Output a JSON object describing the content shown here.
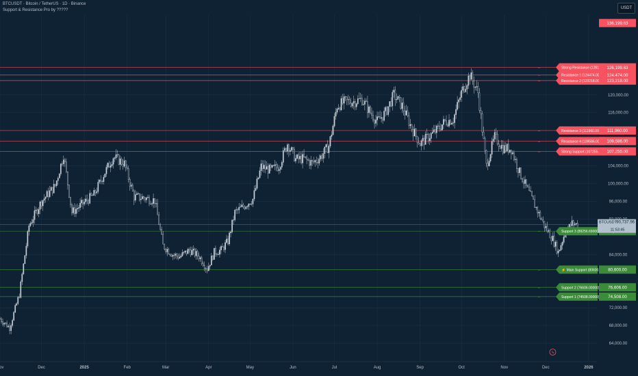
{
  "header": {
    "symbol_line": "BTCUSDT · Bitcoin / TetherUS · 1D · Binance",
    "indicator_line": "Support & Resistance Pro by ?????"
  },
  "toolbar": {
    "currency_label": "USDT",
    "zoom_label": ""
  },
  "price_badge": {
    "symbol": "BTCUSDT",
    "price": "90,737.96",
    "countdown": "11:53:45"
  },
  "colors": {
    "background": "#0f2233",
    "candle": "#c9d1da",
    "resistance": "#f7525f",
    "support": "#3c8b3a",
    "current": "#b2c1cd"
  },
  "chart_data": {
    "type": "candlestick",
    "ylim": [
      60000,
      138000
    ],
    "y_ticks": [
      {
        "v": 120000,
        "label": "120,000.00"
      },
      {
        "v": 116000,
        "label": "116,000.00"
      },
      {
        "v": 104000,
        "label": "104,000.00"
      },
      {
        "v": 100000,
        "label": "100,000.00"
      },
      {
        "v": 96000,
        "label": "96,000.00"
      },
      {
        "v": 92000,
        "label": "92,000.00"
      },
      {
        "v": 84000,
        "label": "84,000.00"
      },
      {
        "v": 72000,
        "label": "72,000.00"
      },
      {
        "v": 68000,
        "label": "68,000.00"
      },
      {
        "v": 64000,
        "label": "64,000.00"
      }
    ],
    "x_ticks": [
      {
        "day": 0,
        "label": "Nov",
        "bold": false
      },
      {
        "day": 30,
        "label": "Dec",
        "bold": false
      },
      {
        "day": 61,
        "label": "2025",
        "bold": true
      },
      {
        "day": 92,
        "label": "Feb",
        "bold": false
      },
      {
        "day": 120,
        "label": "Mar",
        "bold": false
      },
      {
        "day": 151,
        "label": "Apr",
        "bold": false
      },
      {
        "day": 181,
        "label": "May",
        "bold": false
      },
      {
        "day": 212,
        "label": "Jun",
        "bold": false
      },
      {
        "day": 242,
        "label": "Jul",
        "bold": false
      },
      {
        "day": 273,
        "label": "Aug",
        "bold": false
      },
      {
        "day": 304,
        "label": "Sep",
        "bold": false
      },
      {
        "day": 334,
        "label": "Oct",
        "bold": false
      },
      {
        "day": 365,
        "label": "Nov",
        "bold": false
      },
      {
        "day": 395,
        "label": "Dec",
        "bold": false
      },
      {
        "day": 426,
        "label": "2026",
        "bold": true
      }
    ],
    "price_path": [
      [
        0,
        69500
      ],
      [
        7,
        67500
      ],
      [
        14,
        75000
      ],
      [
        21,
        90500
      ],
      [
        30,
        96000
      ],
      [
        40,
        99500
      ],
      [
        46,
        106500
      ],
      [
        52,
        93500
      ],
      [
        60,
        95500
      ],
      [
        68,
        97500
      ],
      [
        75,
        102000
      ],
      [
        82,
        106000
      ],
      [
        90,
        104500
      ],
      [
        97,
        97000
      ],
      [
        104,
        96800
      ],
      [
        112,
        96200
      ],
      [
        118,
        86000
      ],
      [
        125,
        84000
      ],
      [
        130,
        83500
      ],
      [
        137,
        85000
      ],
      [
        144,
        83600
      ],
      [
        150,
        80800
      ],
      [
        155,
        84500
      ],
      [
        160,
        85000
      ],
      [
        165,
        87000
      ],
      [
        170,
        93500
      ],
      [
        176,
        94800
      ],
      [
        183,
        96500
      ],
      [
        189,
        103800
      ],
      [
        196,
        103000
      ],
      [
        202,
        104000
      ],
      [
        208,
        109000
      ],
      [
        214,
        105500
      ],
      [
        220,
        105600
      ],
      [
        226,
        104600
      ],
      [
        232,
        106000
      ],
      [
        238,
        108500
      ],
      [
        244,
        117500
      ],
      [
        250,
        118500
      ],
      [
        256,
        118500
      ],
      [
        262,
        119000
      ],
      [
        268,
        116000
      ],
      [
        273,
        114000
      ],
      [
        279,
        116000
      ],
      [
        285,
        120000
      ],
      [
        291,
        117500
      ],
      [
        298,
        112500
      ],
      [
        304,
        109000
      ],
      [
        310,
        110500
      ],
      [
        316,
        112000
      ],
      [
        322,
        114000
      ],
      [
        328,
        114500
      ],
      [
        334,
        120500
      ],
      [
        340,
        124500
      ],
      [
        346,
        120500
      ],
      [
        352,
        104000
      ],
      [
        358,
        110500
      ],
      [
        364,
        108000
      ],
      [
        370,
        107800
      ],
      [
        376,
        102500
      ],
      [
        382,
        98500
      ],
      [
        388,
        94500
      ],
      [
        394,
        90500
      ],
      [
        400,
        87500
      ],
      [
        404,
        84500
      ],
      [
        409,
        89000
      ],
      [
        414,
        91000
      ],
      [
        418,
        90740
      ]
    ],
    "current_price": 90737.96,
    "levels": [
      {
        "kind": "resistance",
        "price": 126199.63,
        "label": "Strong Resistance (126199.63000)",
        "price_label": "126,199.63"
      },
      {
        "kind": "resistance",
        "price": 124474.0,
        "label": "Resistance 1 (124474.00000)",
        "price_label": "124,474.00"
      },
      {
        "kind": "resistance",
        "price": 123218.0,
        "label": "Resistance 2 (123218.00000)",
        "price_label": "123,218.00"
      },
      {
        "kind": "resistance",
        "price": 111960.0,
        "label": "Resistance 3 (111960.00000)",
        "price_label": "111,960.00"
      },
      {
        "kind": "resistance",
        "price": 109586.0,
        "label": "Resistance 4 (109586.00000)",
        "price_label": "109,586.00"
      },
      {
        "kind": "resistance",
        "price": 107255.0,
        "label": "Strong Support (107255.00000)",
        "price_label": "107,255.00"
      },
      {
        "kind": "support",
        "price": 89256.69,
        "label": "Support 3 (89256.69000)",
        "price_label": "89,256.69"
      },
      {
        "kind": "support",
        "price": 80600.0,
        "label": "⚡ Main Support (80600.00000)",
        "price_label": "80,600.00"
      },
      {
        "kind": "support",
        "price": 76606.0,
        "label": "Support 2 (76606.00000)",
        "price_label": "76,606.00"
      },
      {
        "kind": "support",
        "price": 74508.0,
        "label": "Support 1 (74508.00000)",
        "price_label": "74,508.00"
      }
    ],
    "top_axis_label": {
      "price": 136199.63,
      "label": "136,199.63"
    }
  }
}
